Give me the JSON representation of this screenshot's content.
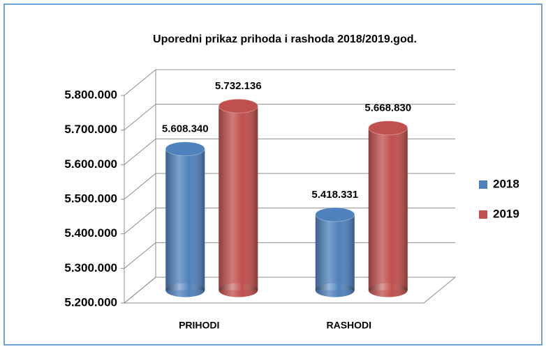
{
  "chart_data": {
    "type": "bar",
    "title": "Uporedni prikaz prihoda i rashoda 2018/2019.god.",
    "categories": [
      "PRIHODI",
      "RASHODI"
    ],
    "series": [
      {
        "name": "2018",
        "color": "#4f81bd",
        "values": [
          5608340,
          5418331
        ],
        "value_labels": [
          "5.608.340",
          "5.418.331"
        ]
      },
      {
        "name": "2019",
        "color": "#c0504d",
        "values": [
          5732136,
          5668830
        ],
        "value_labels": [
          "5.732.136",
          "5.668.830"
        ]
      }
    ],
    "ylim": [
      5200000,
      5800000
    ],
    "yticks": [
      {
        "value": 5200000,
        "label": "5.200.000"
      },
      {
        "value": 5300000,
        "label": "5.300.000"
      },
      {
        "value": 5400000,
        "label": "5.400.000"
      },
      {
        "value": 5500000,
        "label": "5.500.000"
      },
      {
        "value": 5600000,
        "label": "5.600.000"
      },
      {
        "value": 5700000,
        "label": "5.700.000"
      },
      {
        "value": 5800000,
        "label": "5.800.000"
      }
    ],
    "grid": true,
    "legend": "right"
  }
}
